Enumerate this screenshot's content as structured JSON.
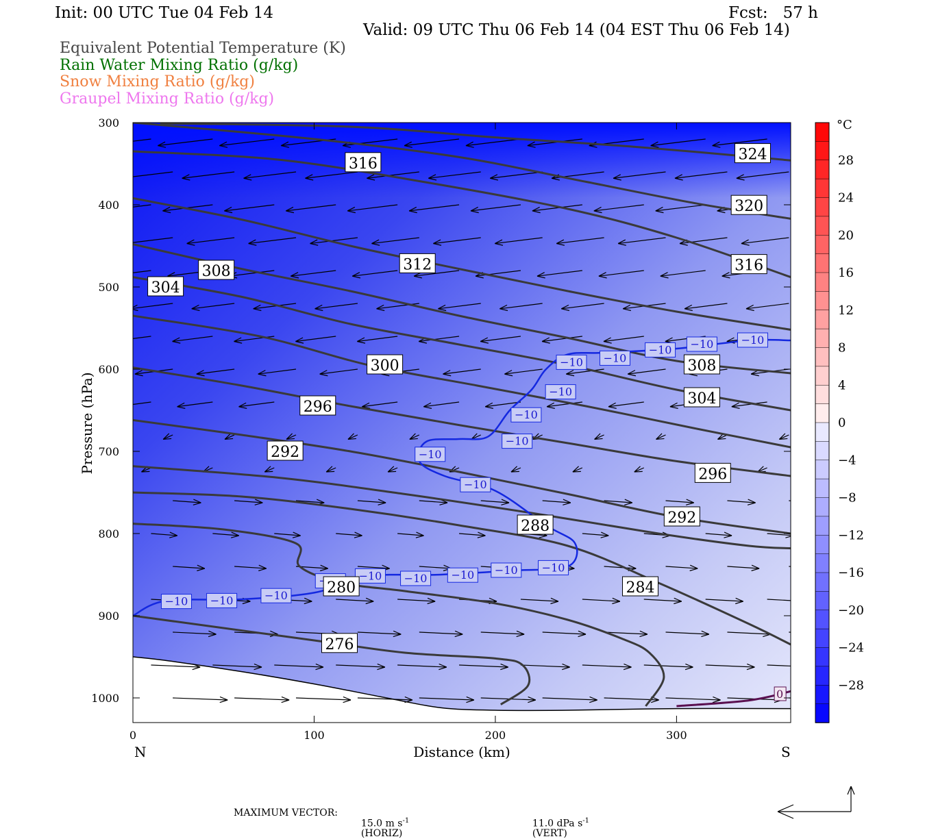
{
  "header": {
    "init": "Init: 00 UTC Tue 04 Feb 14",
    "fcst": "Fcst:   57 h",
    "valid": "Valid: 09 UTC Thu 06 Feb 14 (04 EST Thu 06 Feb 14)"
  },
  "legend": [
    {
      "label": "Equivalent Potential Temperature (K)",
      "color": "#444444"
    },
    {
      "label": "Rain Water Mixing Ratio (g/kg)",
      "color": "#007000"
    },
    {
      "label": "Snow Mixing Ratio (g/kg)",
      "color": "#f08040"
    },
    {
      "label": "Graupel Mixing Ratio (g/kg)",
      "color": "#ee77ee"
    }
  ],
  "footer": {
    "max_vector_label": "MAXIMUM VECTOR:",
    "horiz": "15.0 m s",
    "horiz_exp": "-1",
    "horiz_unit": "(HORIZ)",
    "vert": "11.0 dPa s",
    "vert_exp": "-1",
    "vert_unit": "(VERT)"
  },
  "chart_data": {
    "type": "cross-section",
    "xlabel": "Distance (km)",
    "ylabel": "Pressure (hPa)",
    "xlim": [
      0,
      363
    ],
    "ylim": [
      1030,
      300
    ],
    "x_ticks": [
      0,
      100,
      200,
      300
    ],
    "y_ticks": [
      300,
      400,
      500,
      600,
      700,
      800,
      900,
      1000
    ],
    "x_end_labels": {
      "left": "N",
      "right": "S"
    },
    "colorbar": {
      "unit": "°C",
      "tick_labels": [
        "28",
        "24",
        "20",
        "16",
        "12",
        "8",
        "4",
        "0",
        "−4",
        "−8",
        "−12",
        "−16",
        "−20",
        "−24",
        "−28"
      ],
      "tick_values": [
        28,
        24,
        20,
        16,
        12,
        8,
        4,
        0,
        -4,
        -8,
        -12,
        -16,
        -20,
        -24,
        -28
      ],
      "range": [
        -32,
        32
      ],
      "step": 2
    },
    "theta_e_contours": [
      {
        "value": 276,
        "label": "276",
        "points": [
          [
            0,
            900
          ],
          [
            40,
            912
          ],
          [
            100,
            930
          ],
          [
            150,
            945
          ],
          [
            200,
            952
          ],
          [
            215,
            960
          ],
          [
            218,
            985
          ],
          [
            203,
            1008
          ]
        ],
        "label_at": [
          114,
          934
        ]
      },
      {
        "value": 280,
        "label": "280",
        "points": [
          [
            0,
            788
          ],
          [
            50,
            795
          ],
          [
            90,
            812
          ],
          [
            92,
            840
          ],
          [
            115,
            860
          ],
          [
            150,
            870
          ],
          [
            200,
            885
          ],
          [
            240,
            905
          ],
          [
            270,
            928
          ],
          [
            285,
            945
          ],
          [
            293,
            975
          ],
          [
            283,
            1010
          ]
        ],
        "label_at": [
          115,
          865
        ]
      },
      {
        "value": 284,
        "label": "284",
        "points": [
          [
            0,
            750
          ],
          [
            60,
            755
          ],
          [
            120,
            770
          ],
          [
            180,
            790
          ],
          [
            240,
            815
          ],
          [
            290,
            860
          ],
          [
            340,
            910
          ],
          [
            363,
            935
          ]
        ],
        "label_at": [
          280,
          865
        ]
      },
      {
        "value": 288,
        "label": "288",
        "points": [
          [
            0,
            718
          ],
          [
            80,
            732
          ],
          [
            150,
            752
          ],
          [
            220,
            775
          ],
          [
            290,
            800
          ],
          [
            340,
            815
          ],
          [
            363,
            818
          ]
        ],
        "label_at": [
          222,
          790
        ]
      },
      {
        "value": 292,
        "label": "292",
        "points": [
          [
            0,
            662
          ],
          [
            60,
            680
          ],
          [
            120,
            700
          ],
          [
            180,
            725
          ],
          [
            240,
            752
          ],
          [
            300,
            780
          ],
          [
            363,
            800
          ]
        ],
        "label_at": [
          84,
          700
        ]
      },
      {
        "value": 292,
        "label": "292",
        "points": [],
        "label_at": [
          303,
          780
        ]
      },
      {
        "value": 296,
        "label": "296",
        "points": [
          [
            0,
            598
          ],
          [
            60,
            620
          ],
          [
            120,
            645
          ],
          [
            180,
            668
          ],
          [
            240,
            690
          ],
          [
            300,
            712
          ],
          [
            363,
            730
          ]
        ],
        "label_at": [
          102,
          645
        ]
      },
      {
        "value": 296,
        "label": "296",
        "points": [],
        "label_at": [
          320,
          727
        ]
      },
      {
        "value": 300,
        "label": "300",
        "points": [
          [
            0,
            535
          ],
          [
            70,
            560
          ],
          [
            130,
            595
          ],
          [
            190,
            620
          ],
          [
            250,
            645
          ],
          [
            310,
            672
          ],
          [
            363,
            695
          ]
        ],
        "label_at": [
          139,
          595
        ]
      },
      {
        "value": 304,
        "label": "304",
        "points": [
          [
            0,
            488
          ],
          [
            60,
            512
          ],
          [
            120,
            545
          ],
          [
            180,
            570
          ],
          [
            240,
            595
          ],
          [
            300,
            625
          ],
          [
            363,
            650
          ]
        ],
        "label_at": [
          18,
          500
        ]
      },
      {
        "value": 304,
        "label": "304",
        "points": [],
        "label_at": [
          314,
          635
        ]
      },
      {
        "value": 308,
        "label": "308",
        "points": [
          [
            0,
            448
          ],
          [
            60,
            478
          ],
          [
            120,
            505
          ],
          [
            180,
            535
          ],
          [
            240,
            562
          ],
          [
            300,
            590
          ],
          [
            363,
            605
          ]
        ],
        "label_at": [
          46,
          480
        ]
      },
      {
        "value": 308,
        "label": "308",
        "points": [],
        "label_at": [
          314,
          595
        ]
      },
      {
        "value": 312,
        "label": "312",
        "points": [
          [
            0,
            392
          ],
          [
            60,
            418
          ],
          [
            120,
            450
          ],
          [
            180,
            478
          ],
          [
            240,
            505
          ],
          [
            300,
            530
          ],
          [
            363,
            552
          ]
        ],
        "label_at": [
          157,
          472
        ]
      },
      {
        "value": 316,
        "label": "316",
        "points": [
          [
            0,
            335
          ],
          [
            80,
            345
          ],
          [
            160,
            372
          ],
          [
            240,
            405
          ],
          [
            300,
            440
          ],
          [
            363,
            488
          ]
        ],
        "label_at": [
          127,
          349
        ]
      },
      {
        "value": 316,
        "label": "316",
        "points": [],
        "label_at": [
          340,
          473
        ]
      },
      {
        "value": 320,
        "label": "320",
        "points": [
          [
            0,
            300
          ],
          [
            100,
            320
          ],
          [
            180,
            342
          ],
          [
            250,
            372
          ],
          [
            310,
            398
          ],
          [
            363,
            417
          ]
        ],
        "label_at": [
          340,
          401
        ]
      },
      {
        "value": 324,
        "label": "324",
        "points": [
          [
            15,
            301
          ],
          [
            120,
            305
          ],
          [
            200,
            318
          ],
          [
            280,
            330
          ],
          [
            363,
            346
          ]
        ],
        "label_at": [
          342,
          338
        ]
      }
    ],
    "minus10_isotherm": {
      "points": [
        [
          0,
          900
        ],
        [
          18,
          882
        ],
        [
          60,
          880
        ],
        [
          100,
          872
        ],
        [
          130,
          852
        ],
        [
          170,
          850
        ],
        [
          210,
          845
        ],
        [
          240,
          840
        ],
        [
          244,
          812
        ],
        [
          228,
          790
        ],
        [
          200,
          748
        ],
        [
          172,
          730
        ],
        [
          158,
          712
        ],
        [
          162,
          688
        ],
        [
          180,
          685
        ],
        [
          196,
          682
        ],
        [
          208,
          650
        ],
        [
          220,
          625
        ],
        [
          228,
          600
        ],
        [
          240,
          582
        ],
        [
          260,
          580
        ],
        [
          300,
          575
        ],
        [
          340,
          565
        ],
        [
          363,
          565
        ]
      ],
      "label": "−10",
      "label_positions": [
        [
          24,
          883
        ],
        [
          49,
          882
        ],
        [
          79,
          876
        ],
        [
          109,
          858
        ],
        [
          131,
          852
        ],
        [
          156,
          855
        ],
        [
          182,
          851
        ],
        [
          206,
          845
        ],
        [
          232,
          842
        ],
        [
          164,
          704
        ],
        [
          189,
          741
        ],
        [
          212,
          688
        ],
        [
          217,
          656
        ],
        [
          236,
          628
        ],
        [
          242,
          592
        ],
        [
          266,
          587
        ],
        [
          291,
          577
        ],
        [
          314,
          570
        ],
        [
          342,
          565
        ]
      ]
    },
    "zero_isotherm": {
      "points": [
        [
          300,
          1010
        ],
        [
          340,
          1003
        ],
        [
          363,
          992
        ]
      ],
      "label": "0",
      "label_at": [
        357,
        995
      ]
    },
    "surface": {
      "points": [
        [
          0,
          950
        ],
        [
          20,
          955
        ],
        [
          60,
          968
        ],
        [
          100,
          983
        ],
        [
          140,
          1000
        ],
        [
          170,
          1012
        ],
        [
          200,
          1015
        ],
        [
          240,
          1015
        ],
        [
          300,
          1013
        ],
        [
          363,
          1013
        ]
      ]
    }
  }
}
